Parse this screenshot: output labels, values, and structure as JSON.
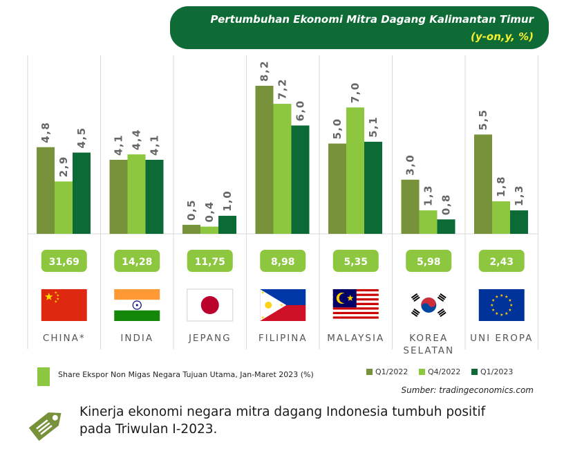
{
  "header": {
    "title": "Pertumbuhan Ekonomi Mitra Dagang Kalimantan Timur",
    "subtitle": "(y-on,y, %)"
  },
  "colors": {
    "q1_2022": "#77923a",
    "q4_2022": "#8dc63f",
    "q1_2023": "#0b6a36",
    "header_bg": "#0f6b35",
    "subtitle": "#f7f030",
    "share_badge": "#8dc63f"
  },
  "chart_data": {
    "type": "bar",
    "categories": [
      "CHINA*",
      "INDIA",
      "JEPANG",
      "FILIPINA",
      "MALAYSIA",
      "KOREA SELATAN",
      "UNI EROPA"
    ],
    "category_lines": [
      [
        "CHINA*"
      ],
      [
        "INDIA"
      ],
      [
        "JEPANG"
      ],
      [
        "FILIPINA"
      ],
      [
        "MALAYSIA"
      ],
      [
        "KOREA",
        "SELATAN"
      ],
      [
        "UNI EROPA"
      ]
    ],
    "series": [
      {
        "name": "Q1/2022",
        "values": [
          4.8,
          4.1,
          0.5,
          8.2,
          5.0,
          3.0,
          5.5
        ],
        "labels": [
          "4,8",
          "4,1",
          "0,5",
          "8,2",
          "5,0",
          "3,0",
          "5,5"
        ]
      },
      {
        "name": "Q4/2022",
        "values": [
          2.9,
          4.4,
          0.4,
          7.2,
          7.0,
          1.3,
          1.8
        ],
        "labels": [
          "2,9",
          "4,4",
          "0,4",
          "7,2",
          "7,0",
          "1,3",
          "1,8"
        ]
      },
      {
        "name": "Q1/2023",
        "values": [
          4.5,
          4.1,
          1.0,
          6.0,
          5.1,
          0.8,
          1.3
        ],
        "labels": [
          "4,5",
          "4,1",
          "1,0",
          "6,0",
          "5,1",
          "0,8",
          "1,3"
        ]
      }
    ],
    "ylim": [
      0,
      9
    ],
    "share_values": [
      "31,69",
      "14,28",
      "11,75",
      "8,98",
      "5,35",
      "5,98",
      "2,43"
    ],
    "flags": [
      "china-flag",
      "india-flag",
      "japan-flag",
      "philippines-flag",
      "malaysia-flag",
      "south-korea-flag",
      "eu-flag"
    ]
  },
  "legend": {
    "share_label": "Share Ekspor Non Migas Negara Tujuan Utama, Jan-Maret 2023 (%)",
    "series_labels": [
      "Q1/2022",
      "Q4/2022",
      "Q1/2023"
    ]
  },
  "source": "Sumber: tradingeconomics.com",
  "footer": {
    "line1": "Kinerja ekonomi negara mitra dagang Indonesia tumbuh positif",
    "line2": "pada Triwulan I-2023."
  }
}
